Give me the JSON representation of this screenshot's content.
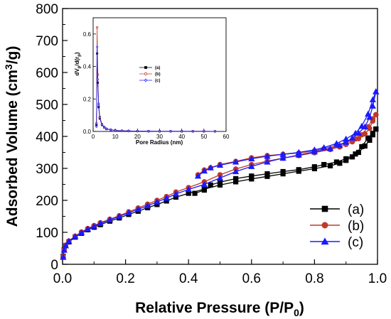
{
  "chart_data": [
    {
      "type": "line",
      "xlabel": "Relative Pressure (P/P",
      "xlabel_sub": "0",
      "xlabel_tail": ")",
      "ylabel": "Adsorbed Volume (cm",
      "ylabel_sup": "3",
      "ylabel_tail": "/g)",
      "xlim": [
        0,
        1.0
      ],
      "ylim": [
        0,
        800
      ],
      "xticks": [
        "0.0",
        "0.2",
        "0.4",
        "0.6",
        "0.8",
        "1.0"
      ],
      "xtick_values": [
        0,
        0.2,
        0.4,
        0.6,
        0.8,
        1.0
      ],
      "yticks": [
        "0",
        "100",
        "200",
        "300",
        "400",
        "500",
        "600",
        "700",
        "800"
      ],
      "ytick_values": [
        0,
        100,
        200,
        300,
        400,
        500,
        600,
        700,
        800
      ],
      "grid": false,
      "legend_position": "lower-right",
      "series": [
        {
          "name": "(a)",
          "color": "#000000",
          "marker": "square",
          "adsorption": [
            [
              0.002,
              25
            ],
            [
              0.005,
              45
            ],
            [
              0.01,
              58
            ],
            [
              0.02,
              70
            ],
            [
              0.04,
              85
            ],
            [
              0.06,
              97
            ],
            [
              0.08,
              108
            ],
            [
              0.1,
              116
            ],
            [
              0.12,
              124
            ],
            [
              0.15,
              135
            ],
            [
              0.18,
              145
            ],
            [
              0.21,
              156
            ],
            [
              0.24,
              166
            ],
            [
              0.27,
              177
            ],
            [
              0.3,
              187
            ],
            [
              0.33,
              198
            ],
            [
              0.36,
              210
            ],
            [
              0.4,
              222
            ],
            [
              0.45,
              235
            ],
            [
              0.5,
              248
            ],
            [
              0.55,
              258
            ],
            [
              0.6,
              267
            ],
            [
              0.65,
              275
            ],
            [
              0.7,
              283
            ],
            [
              0.75,
              291
            ],
            [
              0.8,
              299
            ],
            [
              0.85,
              308
            ],
            [
              0.88,
              316
            ],
            [
              0.9,
              325
            ],
            [
              0.92,
              336
            ],
            [
              0.94,
              350
            ],
            [
              0.96,
              370
            ],
            [
              0.975,
              388
            ],
            [
              0.985,
              405
            ],
            [
              0.995,
              423
            ]
          ],
          "desorption": [
            [
              0.995,
              423
            ],
            [
              0.985,
              410
            ],
            [
              0.97,
              395
            ],
            [
              0.95,
              368
            ],
            [
              0.93,
              345
            ],
            [
              0.9,
              330
            ],
            [
              0.87,
              320
            ],
            [
              0.83,
              312
            ],
            [
              0.8,
              305
            ],
            [
              0.75,
              296
            ],
            [
              0.7,
              290
            ],
            [
              0.65,
              283
            ],
            [
              0.6,
              276
            ],
            [
              0.55,
              268
            ],
            [
              0.5,
              257
            ],
            [
              0.47,
              248
            ],
            [
              0.45,
              232
            ],
            [
              0.42,
              222
            ]
          ]
        },
        {
          "name": "(b)",
          "color": "#c0392b",
          "marker": "circle",
          "adsorption": [
            [
              0.002,
              25
            ],
            [
              0.005,
              46
            ],
            [
              0.01,
              60
            ],
            [
              0.02,
              73
            ],
            [
              0.04,
              88
            ],
            [
              0.06,
              101
            ],
            [
              0.08,
              112
            ],
            [
              0.1,
              121
            ],
            [
              0.12,
              130
            ],
            [
              0.15,
              141
            ],
            [
              0.18,
              152
            ],
            [
              0.21,
              164
            ],
            [
              0.24,
              176
            ],
            [
              0.27,
              188
            ],
            [
              0.3,
              200
            ],
            [
              0.33,
              212
            ],
            [
              0.36,
              226
            ],
            [
              0.4,
              240
            ],
            [
              0.45,
              258
            ],
            [
              0.5,
              280
            ],
            [
              0.55,
              298
            ],
            [
              0.6,
              312
            ],
            [
              0.65,
              323
            ],
            [
              0.7,
              332
            ],
            [
              0.75,
              340
            ],
            [
              0.8,
              349
            ],
            [
              0.85,
              359
            ],
            [
              0.88,
              367
            ],
            [
              0.9,
              375
            ],
            [
              0.92,
              383
            ],
            [
              0.94,
              393
            ],
            [
              0.96,
              408
            ],
            [
              0.975,
              425
            ],
            [
              0.985,
              448
            ],
            [
              0.995,
              468
            ]
          ],
          "desorption": [
            [
              0.995,
              468
            ],
            [
              0.985,
              455
            ],
            [
              0.97,
              430
            ],
            [
              0.95,
              405
            ],
            [
              0.93,
              392
            ],
            [
              0.9,
              382
            ],
            [
              0.87,
              372
            ],
            [
              0.83,
              362
            ],
            [
              0.8,
              355
            ],
            [
              0.75,
              348
            ],
            [
              0.7,
              344
            ],
            [
              0.65,
              340
            ],
            [
              0.6,
              333
            ],
            [
              0.55,
              322
            ],
            [
              0.5,
              312
            ],
            [
              0.47,
              302
            ],
            [
              0.45,
              295
            ],
            [
              0.43,
              280
            ]
          ]
        },
        {
          "name": "(c)",
          "color": "#1a1aff",
          "marker": "triangle",
          "adsorption": [
            [
              0.002,
              22
            ],
            [
              0.005,
              44
            ],
            [
              0.01,
              58
            ],
            [
              0.02,
              72
            ],
            [
              0.04,
              87
            ],
            [
              0.06,
              99
            ],
            [
              0.08,
              110
            ],
            [
              0.1,
              119
            ],
            [
              0.12,
              128
            ],
            [
              0.15,
              139
            ],
            [
              0.18,
              150
            ],
            [
              0.21,
              161
            ],
            [
              0.24,
              172
            ],
            [
              0.27,
              183
            ],
            [
              0.3,
              195
            ],
            [
              0.33,
              207
            ],
            [
              0.36,
              220
            ],
            [
              0.4,
              234
            ],
            [
              0.45,
              250
            ],
            [
              0.5,
              270
            ],
            [
              0.55,
              290
            ],
            [
              0.6,
              306
            ],
            [
              0.65,
              320
            ],
            [
              0.7,
              332
            ],
            [
              0.75,
              342
            ],
            [
              0.8,
              352
            ],
            [
              0.85,
              362
            ],
            [
              0.88,
              372
            ],
            [
              0.9,
              382
            ],
            [
              0.92,
              395
            ],
            [
              0.94,
              410
            ],
            [
              0.96,
              430
            ],
            [
              0.975,
              460
            ],
            [
              0.985,
              495
            ],
            [
              0.995,
              540
            ]
          ],
          "desorption": [
            [
              0.995,
              540
            ],
            [
              0.985,
              515
            ],
            [
              0.97,
              470
            ],
            [
              0.95,
              432
            ],
            [
              0.93,
              410
            ],
            [
              0.9,
              392
            ],
            [
              0.87,
              378
            ],
            [
              0.83,
              365
            ],
            [
              0.8,
              358
            ],
            [
              0.75,
              350
            ],
            [
              0.7,
              344
            ],
            [
              0.65,
              338
            ],
            [
              0.6,
              330
            ],
            [
              0.55,
              320
            ],
            [
              0.5,
              310
            ],
            [
              0.47,
              302
            ],
            [
              0.45,
              292
            ],
            [
              0.43,
              276
            ]
          ]
        }
      ]
    },
    {
      "type": "line",
      "xlabel": "Pore Radius (nm)",
      "ylabel": "dV",
      "ylabel_sub1": "p",
      "ylabel_mid": "/d(r",
      "ylabel_sub2": "p",
      "ylabel_tail": ")",
      "xlim": [
        0,
        60
      ],
      "ylim": [
        0,
        0.7
      ],
      "xticks": [
        "0",
        "10",
        "20",
        "30",
        "40",
        "50",
        "60"
      ],
      "xtick_values": [
        0,
        10,
        20,
        30,
        40,
        50,
        60
      ],
      "yticks": [
        "0.0",
        "0.2",
        "0.4",
        "0.6"
      ],
      "ytick_values": [
        0,
        0.2,
        0.4,
        0.6
      ],
      "legend_position": "center",
      "series": [
        {
          "name": "(a)",
          "color": "#000000",
          "marker": "square",
          "points": [
            [
              1.5,
              0.04
            ],
            [
              1.8,
              0.48
            ],
            [
              2.1,
              0.3
            ],
            [
              2.5,
              0.15
            ],
            [
              3,
              0.08
            ],
            [
              4,
              0.04
            ],
            [
              5,
              0.025
            ],
            [
              6,
              0.015
            ],
            [
              8,
              0.01
            ],
            [
              10,
              0.006
            ],
            [
              13,
              0.004
            ],
            [
              16,
              0.003
            ],
            [
              20,
              0.002
            ],
            [
              25,
              0.0015
            ],
            [
              30,
              0.001
            ],
            [
              35,
              0.001
            ],
            [
              40,
              0.001
            ],
            [
              45,
              0.0008
            ],
            [
              50,
              0.0007
            ],
            [
              55,
              0.0006
            ]
          ]
        },
        {
          "name": "(b)",
          "color": "#c0392b",
          "marker": "circle",
          "points": [
            [
              1.5,
              0.05
            ],
            [
              1.8,
              0.64
            ],
            [
              2.1,
              0.35
            ],
            [
              2.5,
              0.17
            ],
            [
              3,
              0.09
            ],
            [
              4,
              0.045
            ],
            [
              5,
              0.028
            ],
            [
              6,
              0.017
            ],
            [
              8,
              0.011
            ],
            [
              10,
              0.007
            ],
            [
              13,
              0.005
            ],
            [
              16,
              0.003
            ],
            [
              20,
              0.002
            ],
            [
              25,
              0.0015
            ],
            [
              30,
              0.001
            ],
            [
              35,
              0.001
            ],
            [
              40,
              0.001
            ],
            [
              45,
              0.0008
            ],
            [
              50,
              0.0007
            ],
            [
              55,
              0.0006
            ]
          ]
        },
        {
          "name": "(c)",
          "color": "#1a1aff",
          "marker": "diamond",
          "points": [
            [
              1.5,
              0.03
            ],
            [
              1.8,
              0.52
            ],
            [
              2.1,
              0.32
            ],
            [
              2.5,
              0.16
            ],
            [
              3,
              0.085
            ],
            [
              4,
              0.042
            ],
            [
              5,
              0.026
            ],
            [
              6,
              0.016
            ],
            [
              8,
              0.01
            ],
            [
              10,
              0.006
            ],
            [
              13,
              0.004
            ],
            [
              16,
              0.003
            ],
            [
              20,
              0.002
            ],
            [
              25,
              0.0015
            ],
            [
              30,
              0.001
            ],
            [
              35,
              0.001
            ],
            [
              40,
              0.001
            ],
            [
              45,
              0.0008
            ],
            [
              50,
              0.0007
            ],
            [
              55,
              0.0006
            ]
          ]
        }
      ]
    }
  ]
}
